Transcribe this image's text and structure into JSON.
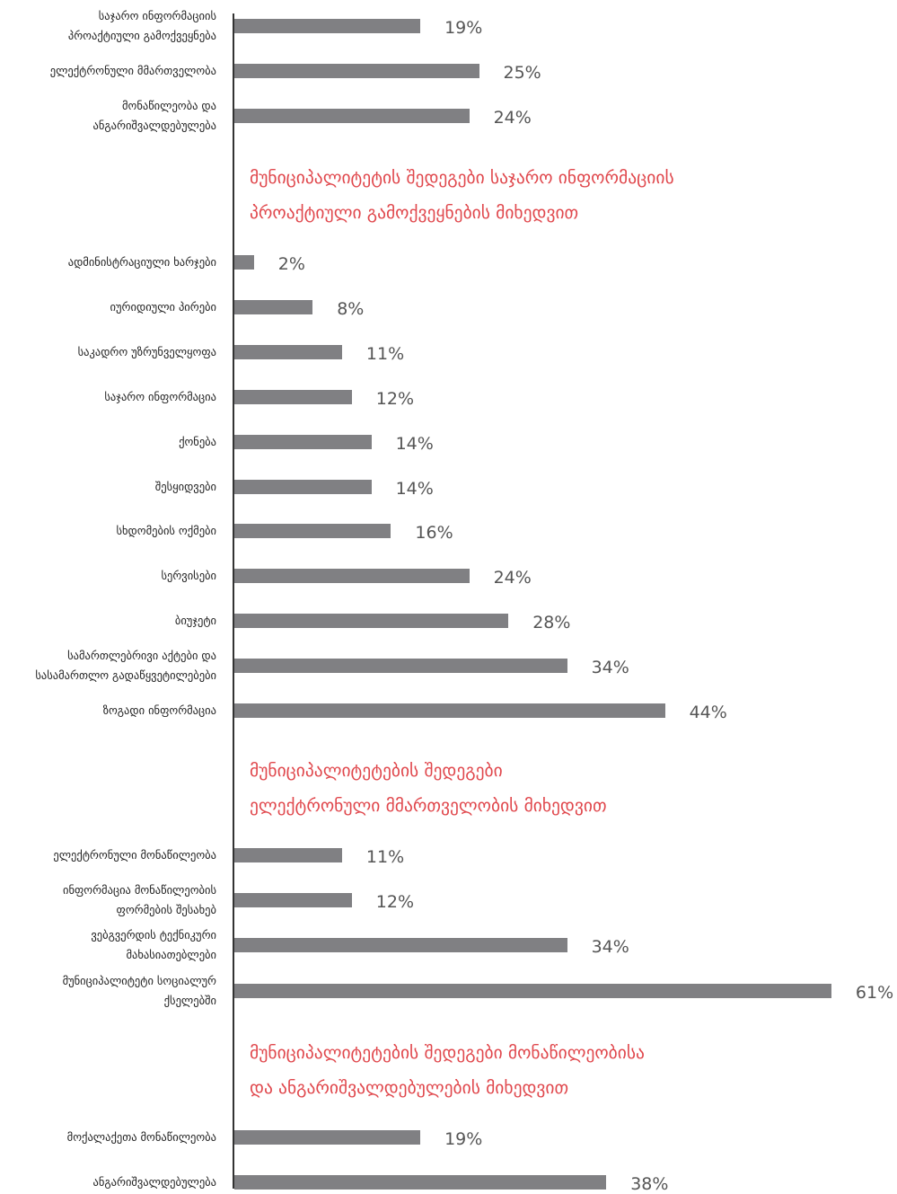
{
  "chart_data": [
    {
      "type": "bar",
      "orientation": "horizontal",
      "color": "#808083",
      "categories": [
        "საჯარო ინფორმაციის\nპროაქტიული გამოქვეყნება",
        "ელექტრონული მმართველობა",
        "მონაწილეობა და\nანგარიშვალდებულება"
      ],
      "values": [
        19,
        25,
        24
      ],
      "value_labels": [
        "19%",
        "25%",
        "24%"
      ]
    },
    {
      "type": "bar",
      "orientation": "horizontal",
      "color": "#808083",
      "title": "მუნიციპალიტეტის შედეგები საჯარო ინფორმაციის\nპროაქტიული გამოქვეყნების მიხედვით",
      "categories": [
        "ადმინისტრაციული ხარჯები",
        "იურიდიული პირები",
        "საკადრო უზრუნველყოფა",
        "საჯარო ინფორმაცია",
        "ქონება",
        "შესყიდვები",
        "სხდომების ოქმები",
        "სერვისები",
        "ბიუჯეტი",
        "სამართლებრივი აქტები და\nსასამართლო გადაწყვეტილებები",
        "ზოგადი ინფორმაცია"
      ],
      "values": [
        2,
        8,
        11,
        12,
        14,
        14,
        16,
        24,
        28,
        34,
        44
      ],
      "value_labels": [
        "2%",
        "8%",
        "11%",
        "12%",
        "14%",
        "14%",
        "16%",
        "24%",
        "28%",
        "34%",
        "44%"
      ]
    },
    {
      "type": "bar",
      "orientation": "horizontal",
      "color": "#808083",
      "title": "მუნიციპალიტეტების შედეგები\nელექტრონული მმართველობის მიხედვით",
      "categories": [
        "ელექტრონული მონაწილეობა",
        "ინფორმაცია მონაწილეობის\nფორმების შესახებ",
        "ვებგვერდის ტექნიკური\nმახასიათებლები",
        "მუნიციპალიტეტი სოციალურ\nქსელებში"
      ],
      "values": [
        11,
        12,
        34,
        61
      ],
      "value_labels": [
        "11%",
        "12%",
        "34%",
        "61%"
      ]
    },
    {
      "type": "bar",
      "orientation": "horizontal",
      "color": "#808083",
      "title": "მუნიციპალიტეტების შედეგები მონაწილეობისა\nდა ანგარიშვალდებულების მიხედვით",
      "categories": [
        "მოქალაქეთა მონაწილეობა",
        "ანგარიშვალდებულება"
      ],
      "values": [
        19,
        38
      ],
      "value_labels": [
        "19%",
        "38%"
      ]
    }
  ]
}
